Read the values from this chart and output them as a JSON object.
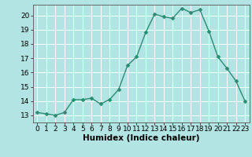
{
  "x": [
    0,
    1,
    2,
    3,
    4,
    5,
    6,
    7,
    8,
    9,
    10,
    11,
    12,
    13,
    14,
    15,
    16,
    17,
    18,
    19,
    20,
    21,
    22,
    23
  ],
  "y": [
    13.2,
    13.1,
    13.0,
    13.2,
    14.1,
    14.1,
    14.2,
    13.8,
    14.1,
    14.8,
    16.5,
    17.1,
    18.8,
    20.1,
    19.9,
    19.8,
    20.5,
    20.2,
    20.4,
    18.9,
    17.1,
    16.3,
    15.4,
    14.0
  ],
  "line_color": "#2d8b74",
  "marker_color": "#2d8b74",
  "bg_color": "#b2e4e4",
  "grid_color": "#ffffff",
  "xlabel": "Humidex (Indice chaleur)",
  "xlim": [
    -0.5,
    23.5
  ],
  "ylim": [
    12.5,
    20.75
  ],
  "yticks": [
    13,
    14,
    15,
    16,
    17,
    18,
    19,
    20
  ],
  "xticks": [
    0,
    1,
    2,
    3,
    4,
    5,
    6,
    7,
    8,
    9,
    10,
    11,
    12,
    13,
    14,
    15,
    16,
    17,
    18,
    19,
    20,
    21,
    22,
    23
  ],
  "tick_fontsize": 6.5,
  "xlabel_fontsize": 7.5,
  "linewidth": 1.0,
  "markersize": 2.5
}
